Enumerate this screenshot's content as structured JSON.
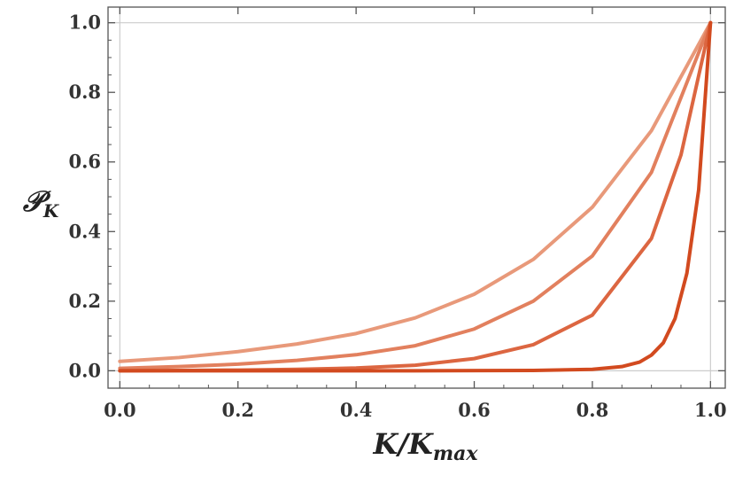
{
  "chart_data": {
    "type": "line",
    "title": "",
    "xlabel": "K/K",
    "xlabel_sub": "max",
    "ylabel": "𝒫",
    "ylabel_sub": "K",
    "xlim": [
      -0.02,
      1.025
    ],
    "ylim": [
      -0.05,
      1.045
    ],
    "x_ticks": [
      0.0,
      0.2,
      0.4,
      0.6,
      0.8,
      1.0
    ],
    "x_tick_labels": [
      "0.0",
      "0.2",
      "0.4",
      "0.6",
      "0.8",
      "1.0"
    ],
    "y_ticks": [
      0.0,
      0.2,
      0.4,
      0.6,
      0.8,
      1.0
    ],
    "y_tick_labels": [
      "0.0",
      "0.2",
      "0.4",
      "0.6",
      "0.8",
      "1.0"
    ],
    "grid": "reference lines at x=0, x=1, y=0, y=1",
    "legend": "none",
    "series": [
      {
        "color": "#E8997A",
        "x": [
          0.0,
          0.1,
          0.2,
          0.3,
          0.4,
          0.5,
          0.6,
          0.7,
          0.8,
          0.9,
          1.0
        ],
        "y": [
          0.027,
          0.038,
          0.055,
          0.077,
          0.107,
          0.152,
          0.22,
          0.32,
          0.47,
          0.69,
          1.0
        ]
      },
      {
        "color": "#E2805E",
        "x": [
          0.0,
          0.1,
          0.2,
          0.3,
          0.4,
          0.5,
          0.6,
          0.7,
          0.8,
          0.9,
          1.0
        ],
        "y": [
          0.007,
          0.012,
          0.019,
          0.03,
          0.046,
          0.072,
          0.12,
          0.2,
          0.33,
          0.57,
          1.0
        ]
      },
      {
        "color": "#DC6641",
        "x": [
          0.0,
          0.1,
          0.2,
          0.3,
          0.4,
          0.5,
          0.6,
          0.7,
          0.8,
          0.9,
          0.95,
          1.0
        ],
        "y": [
          0.0,
          0.001,
          0.002,
          0.004,
          0.008,
          0.016,
          0.035,
          0.075,
          0.16,
          0.38,
          0.62,
          1.0
        ]
      },
      {
        "color": "#D24A1F",
        "x": [
          0.0,
          0.5,
          0.7,
          0.8,
          0.85,
          0.88,
          0.9,
          0.92,
          0.94,
          0.96,
          0.98,
          1.0
        ],
        "y": [
          0.0,
          0.0,
          0.001,
          0.004,
          0.012,
          0.025,
          0.045,
          0.08,
          0.15,
          0.28,
          0.52,
          1.0
        ]
      }
    ]
  }
}
